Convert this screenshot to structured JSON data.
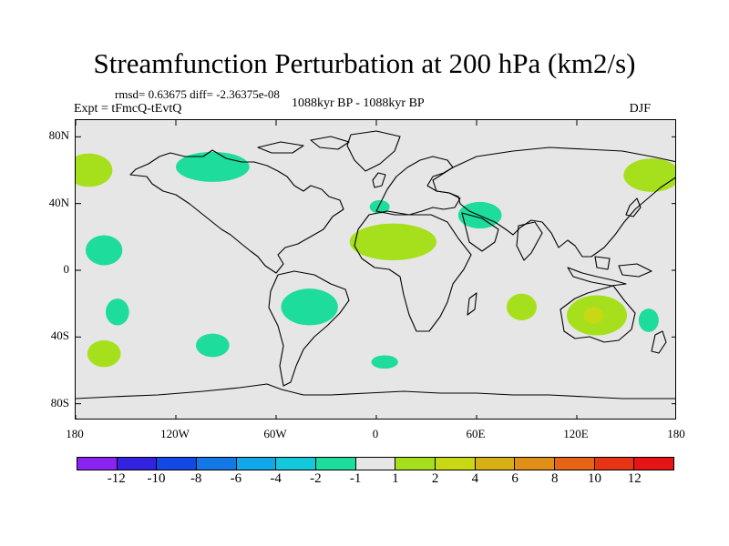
{
  "header": {
    "title": "Streamfunction Perturbation at 200 hPa (km2/s)",
    "stats": "rmsd= 0.63675 diff= -2.36375e-08",
    "experiment": "Expt = tFmcQ-tEvtQ",
    "period": "1088kyr BP - 1088kyr BP",
    "season": "DJF"
  },
  "map": {
    "lon_range": [
      -180,
      180
    ],
    "lat_range": [
      -90,
      90
    ],
    "background_color": "#e6e6e6",
    "lat_tick_labels": [
      "80N",
      "40N",
      "0",
      "40S",
      "80S"
    ],
    "lat_tick_values": [
      80,
      40,
      0,
      -40,
      -80
    ],
    "lon_tick_labels": [
      "180",
      "120W",
      "60W",
      "0",
      "60E",
      "120E",
      "180"
    ],
    "lon_tick_values": [
      -180,
      -120,
      -60,
      0,
      60,
      120,
      180
    ],
    "anomaly_regions": [
      {
        "name": "north-america-negative",
        "lon": -98,
        "lat": 62,
        "rx": 22,
        "ry": 9,
        "level": -2
      },
      {
        "name": "north-pacific-positive-west",
        "lon": -172,
        "lat": 60,
        "rx": 14,
        "ry": 10,
        "level": 2
      },
      {
        "name": "north-pacific-positive-east",
        "lon": 165,
        "lat": 57,
        "rx": 17,
        "ry": 10,
        "level": 2
      },
      {
        "name": "mediterranean-negative",
        "lon": 2,
        "lat": 38,
        "rx": 6,
        "ry": 4,
        "level": -2
      },
      {
        "name": "middle-east-negative",
        "lon": 62,
        "lat": 33,
        "rx": 13,
        "ry": 8,
        "level": -2
      },
      {
        "name": "sahara-positive",
        "lon": 10,
        "lat": 17,
        "rx": 26,
        "ry": 11,
        "level": 2
      },
      {
        "name": "east-pacific-negative",
        "lon": -163,
        "lat": 12,
        "rx": 11,
        "ry": 9,
        "level": -2
      },
      {
        "name": "south-pacific-negative",
        "lon": -155,
        "lat": -25,
        "rx": 7,
        "ry": 8,
        "level": -2
      },
      {
        "name": "brazil-atlantic-negative",
        "lon": -40,
        "lat": -22,
        "rx": 17,
        "ry": 11,
        "level": -2
      },
      {
        "name": "south-pacific-positive",
        "lon": -163,
        "lat": -50,
        "rx": 10,
        "ry": 8,
        "level": 2
      },
      {
        "name": "southeast-pacific-negative",
        "lon": -98,
        "lat": -45,
        "rx": 10,
        "ry": 7,
        "level": -2
      },
      {
        "name": "south-atlantic-negative",
        "lon": 5,
        "lat": -55,
        "rx": 8,
        "ry": 4,
        "level": -2
      },
      {
        "name": "indian-ocean-positive",
        "lon": 87,
        "lat": -22,
        "rx": 9,
        "ry": 8,
        "level": 2
      },
      {
        "name": "australia-positive",
        "lon": 132,
        "lat": -27,
        "rx": 18,
        "ry": 12,
        "level": 2
      },
      {
        "name": "australia-positive-core",
        "lon": 130,
        "lat": -27,
        "rx": 6,
        "ry": 5,
        "level": 4
      },
      {
        "name": "tasman-negative",
        "lon": 163,
        "lat": -30,
        "rx": 6,
        "ry": 7,
        "level": -2
      }
    ]
  },
  "colorbar": {
    "labels": [
      "-12",
      "-10",
      "-8",
      "-6",
      "-4",
      "-2",
      "-1",
      "1",
      "2",
      "4",
      "6",
      "8",
      "10",
      "12"
    ],
    "colors": [
      "#8a23f2",
      "#3322e0",
      "#1148e6",
      "#1477e6",
      "#10a8e8",
      "#14c8dc",
      "#1ddc9c",
      "#e6e6e6",
      "#a6e01c",
      "#c8d814",
      "#d8b014",
      "#e09018",
      "#e66414",
      "#e63414",
      "#e61414"
    ],
    "level_colors": {
      "-2": "#1ddc9c",
      "2": "#a6e01c",
      "4": "#c8d814"
    }
  }
}
